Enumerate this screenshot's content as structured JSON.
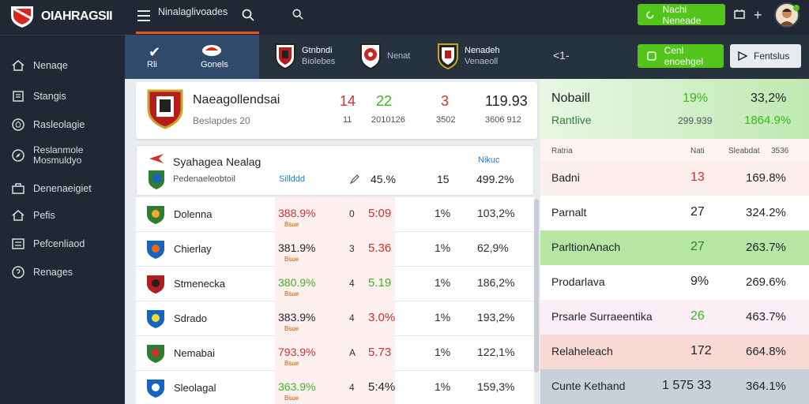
{
  "app": {
    "title": "OIAHRAGSII"
  },
  "colors": {
    "sidebar_bg": "#1f2833",
    "accent_green": "#52c41a",
    "accent_orange": "#e8552b",
    "red_value": "#d32f2f",
    "green_value": "#3cb521"
  },
  "sidebar": {
    "items": [
      {
        "label": "Nenaqe",
        "icon": "home-icon"
      },
      {
        "label": "Stangis",
        "icon": "list-icon"
      },
      {
        "label": "Rasleolagie",
        "icon": "soccer-ball-icon"
      },
      {
        "label": "Reslanmole",
        "label2": "Mosmuldyo",
        "icon": "compass-icon"
      },
      {
        "label": "Denenaeigiet",
        "icon": "briefcase-icon"
      },
      {
        "label": "Pefis",
        "icon": "home-icon"
      },
      {
        "label": "Pefcenliaod",
        "icon": "sliders-icon"
      },
      {
        "label": "Renages",
        "icon": "help-icon"
      }
    ]
  },
  "topbar": {
    "search_tab": "Ninalaglivoades",
    "green_button": "Nachi Neneade"
  },
  "strip": {
    "active": {
      "label": "Rli",
      "badge_label": "Gonels"
    },
    "teams": [
      {
        "name": "Gtnbndi",
        "sub": "Biolebes"
      },
      {
        "name": "",
        "sub": "Nenat"
      },
      {
        "name": "Nenadeh",
        "sub": "Venaeoll"
      }
    ],
    "score": "<1-",
    "follow_button": "Cenl enoehgel",
    "share_button": "Fentslus"
  },
  "feature": {
    "name": "Naeagollendsai",
    "sub": "Beslapdes 20",
    "cols": [
      {
        "top": "14",
        "bottom": "11"
      },
      {
        "top": "22",
        "bottom": "2010126"
      },
      {
        "top": "3",
        "bottom": "3502"
      },
      {
        "top": "119.93",
        "bottom": "3606 912"
      }
    ]
  },
  "league": {
    "title": "Syahagea Nealag",
    "sub": "Pedenaeleobtoil",
    "link": "Sillddd",
    "hint": "Nikuc",
    "pct": "45.%",
    "num": "15",
    "val": "499.2%"
  },
  "rows": [
    {
      "name": "Dolenna",
      "pct": "388.9%",
      "tag": "Bsue",
      "n": "0",
      "score": "5:09",
      "p": "1%",
      "v": "103,2%",
      "pct_color": "#d32f2f",
      "score_color": "#d32f2f"
    },
    {
      "name": "Chierlay",
      "pct": "381.9%",
      "tag": "Bsue",
      "n": "3",
      "score": "5.36",
      "p": "1%",
      "v": "62,9%",
      "pct_color": "#1d2228",
      "score_color": "#d32f2f"
    },
    {
      "name": "Stmenecka",
      "pct": "380.9%",
      "tag": "Bsue",
      "n": "4",
      "score": "5.19",
      "p": "1%",
      "v": "186,2%",
      "pct_color": "#3cb521",
      "score_color": "#3cb521"
    },
    {
      "name": "Sdrado",
      "pct": "383.9%",
      "tag": "Bsue",
      "n": "4",
      "score": "3.0%",
      "p": "1%",
      "v": "193,2%",
      "pct_color": "#1d2228",
      "score_color": "#d32f2f"
    },
    {
      "name": "Nemabai",
      "pct": "793.9%",
      "tag": "Bsue",
      "n": "A",
      "score": "5.73",
      "p": "1%",
      "v": "122,1%",
      "pct_color": "#d32f2f",
      "score_color": "#d32f2f"
    },
    {
      "name": "Sleolagal",
      "pct": "363.9%",
      "tag": "Bsue",
      "n": "4",
      "score": "5:4%",
      "p": "1%",
      "v": "159,3%",
      "pct_color": "#3cb521",
      "score_color": "#1d2228"
    }
  ],
  "right": {
    "head": {
      "title": "Nobaill",
      "sub": "Rantlive",
      "c1": "19%",
      "c1b": "299.939",
      "c2": "33,2%",
      "c2b": "1864.9%"
    },
    "header_row": {
      "a": "Ratria",
      "b": "Nati",
      "c": "Sleabdat",
      "d": "3536"
    },
    "rows": [
      {
        "label": "Badni",
        "num": "13",
        "val": "169.8%",
        "bg": "#fdeeee",
        "num_color": "#d32f2f"
      },
      {
        "label": "Parnalt",
        "num": "27",
        "val": "324.2%",
        "bg": "#ffffff",
        "num_color": "#1d2228"
      },
      {
        "label": "ParltionAnach",
        "num": "27",
        "val": "263.7%",
        "bg": "#b6e6a4",
        "num_color": "#2e7d32"
      },
      {
        "label": "Prodarlava",
        "num": "9%",
        "val": "269.6%",
        "bg": "#ffffff",
        "num_color": "#1d2228"
      },
      {
        "label": "Prsarle Surraeentika",
        "num": "26",
        "val": "463.7%",
        "bg": "#fbeef5",
        "num_color": "#3cb521"
      },
      {
        "label": "Relaheleach",
        "num": "172",
        "val": "664.8%",
        "bg": "#f9d9d3",
        "num_color": "#1d2228"
      },
      {
        "label": "Cunte Kethand",
        "num": "1 575 33",
        "val": "364.1%",
        "bg": "#c9d0da",
        "num_color": "#1d2228"
      }
    ]
  }
}
